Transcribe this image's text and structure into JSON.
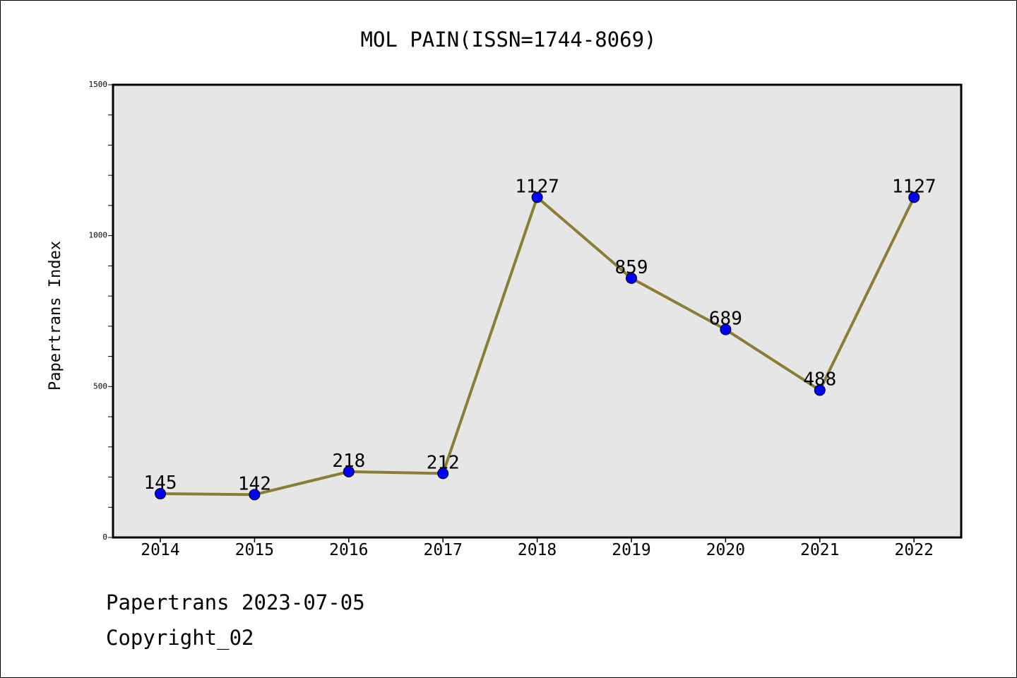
{
  "chart_data": {
    "type": "line",
    "title": "MOL PAIN(ISSN=1744-8069)",
    "xlabel": "",
    "ylabel": "Papertrans Index",
    "categories": [
      "2014",
      "2015",
      "2016",
      "2017",
      "2018",
      "2019",
      "2020",
      "2021",
      "2022"
    ],
    "series": [
      {
        "values": [
          145,
          142,
          218,
          212,
          1127,
          859,
          689,
          488,
          1127
        ]
      }
    ],
    "data_labels": [
      "145",
      "142",
      "218",
      "212",
      "1127",
      "859",
      "689",
      "488",
      "1127"
    ],
    "ylim": [
      0,
      1500
    ],
    "yticks": [
      0,
      500,
      1000,
      1500
    ],
    "ytick_labels": [
      "0",
      "500",
      "1000",
      "1500"
    ],
    "grid": false,
    "legend": "none",
    "colors": {
      "line": "#8B7D36",
      "marker": "#0000FF",
      "plot_background": "#E6E6E6"
    }
  },
  "footer": {
    "line1": "Papertrans 2023-07-05",
    "line2": "Copyright_02"
  }
}
